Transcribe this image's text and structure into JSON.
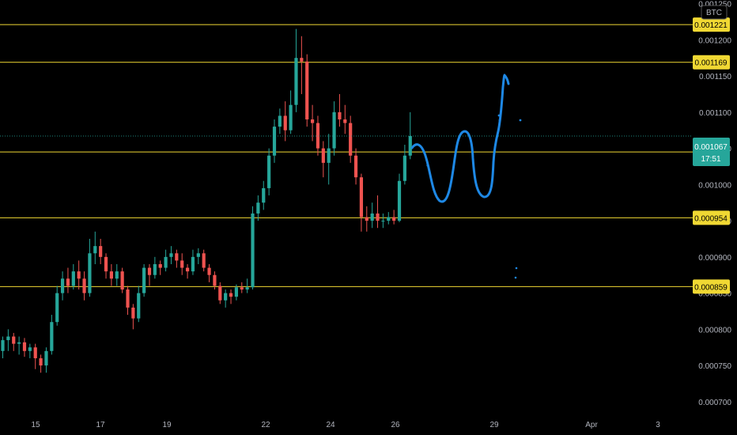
{
  "chart_data": {
    "type": "candlestick",
    "symbol_badge": "BTC",
    "y_axis": {
      "range": [
        0.00069,
        0.001255
      ],
      "ticks": [
        "0.001250",
        "0.001200",
        "0.001150",
        "0.001100",
        "0.001050",
        "0.001000",
        "0.000950",
        "0.000900",
        "0.000850",
        "0.000800",
        "0.000750",
        "0.000700"
      ]
    },
    "x_axis": {
      "labels": [
        "15",
        "17",
        "19",
        "22",
        "24",
        "26",
        "29",
        "Apr",
        "3"
      ]
    },
    "levels": [
      "0.001221",
      "0.001169",
      "0.001045",
      "0.000954",
      "0.000859"
    ],
    "current_price": {
      "value": "0.001067",
      "countdown": "17:51"
    },
    "colors": {
      "up": "#26a69a",
      "down": "#ef5350",
      "level": "#f0d833",
      "drawing": "#1e88e5",
      "current": "#26a69a"
    },
    "candles": [
      [
        0.00077,
        0.000785,
        0.00076,
        0.00079
      ],
      [
        0.000785,
        0.00079,
        0.00077,
        0.0008
      ],
      [
        0.00079,
        0.00078,
        0.00077,
        0.000795
      ],
      [
        0.00078,
        0.000782,
        0.000765,
        0.00079
      ],
      [
        0.000782,
        0.00077,
        0.000762,
        0.000788
      ],
      [
        0.00077,
        0.000775,
        0.00076,
        0.00078
      ],
      [
        0.000775,
        0.00076,
        0.000745,
        0.00078
      ],
      [
        0.00076,
        0.00075,
        0.00074,
        0.000765
      ],
      [
        0.00075,
        0.00077,
        0.00074,
        0.000775
      ],
      [
        0.00077,
        0.00081,
        0.000765,
        0.00082
      ],
      [
        0.00081,
        0.00085,
        0.000805,
        0.00086
      ],
      [
        0.00085,
        0.00087,
        0.00084,
        0.00088
      ],
      [
        0.00087,
        0.00086,
        0.00085,
        0.000885
      ],
      [
        0.00086,
        0.00088,
        0.000855,
        0.00089
      ],
      [
        0.00088,
        0.00087,
        0.000855,
        0.000895
      ],
      [
        0.00087,
        0.00085,
        0.00084,
        0.00088
      ],
      [
        0.00085,
        0.000905,
        0.000845,
        0.000925
      ],
      [
        0.000905,
        0.000915,
        0.00089,
        0.000935
      ],
      [
        0.000915,
        0.0009,
        0.00089,
        0.000925
      ],
      [
        0.0009,
        0.00088,
        0.00087,
        0.000905
      ],
      [
        0.00088,
        0.00087,
        0.00086,
        0.00089
      ],
      [
        0.00087,
        0.00088,
        0.00086,
        0.00089
      ],
      [
        0.00088,
        0.000855,
        0.00085,
        0.000885
      ],
      [
        0.000855,
        0.00083,
        0.00082,
        0.00086
      ],
      [
        0.00083,
        0.000815,
        0.0008,
        0.000835
      ],
      [
        0.000815,
        0.00085,
        0.00081,
        0.00086
      ],
      [
        0.00085,
        0.000885,
        0.000845,
        0.00089
      ],
      [
        0.000885,
        0.000875,
        0.00086,
        0.00089
      ],
      [
        0.000875,
        0.00089,
        0.00087,
        0.0009
      ],
      [
        0.00089,
        0.000885,
        0.000875,
        0.000895
      ],
      [
        0.000885,
        0.0009,
        0.00088,
        0.00091
      ],
      [
        0.0009,
        0.000905,
        0.00089,
        0.000915
      ],
      [
        0.000905,
        0.000895,
        0.000885,
        0.00091
      ],
      [
        0.000895,
        0.000885,
        0.000875,
        0.000905
      ],
      [
        0.000885,
        0.00088,
        0.00087,
        0.00089
      ],
      [
        0.00088,
        0.0009,
        0.000875,
        0.00091
      ],
      [
        0.0009,
        0.000905,
        0.00089,
        0.000912
      ],
      [
        0.000905,
        0.000885,
        0.00088,
        0.00091
      ],
      [
        0.000885,
        0.000875,
        0.000865,
        0.00089
      ],
      [
        0.000875,
        0.00086,
        0.000855,
        0.00088
      ],
      [
        0.00086,
        0.00084,
        0.000835,
        0.000865
      ],
      [
        0.00084,
        0.00085,
        0.00083,
        0.000855
      ],
      [
        0.00085,
        0.000845,
        0.000835,
        0.000855
      ],
      [
        0.000845,
        0.000858,
        0.00084,
        0.000862
      ],
      [
        0.000858,
        0.000855,
        0.00085,
        0.000865
      ],
      [
        0.000855,
        0.000858,
        0.00085,
        0.00087
      ],
      [
        0.000858,
        0.00096,
        0.000855,
        0.00097
      ],
      [
        0.00096,
        0.000975,
        0.00095,
        0.000985
      ],
      [
        0.000975,
        0.000995,
        0.000965,
        0.001005
      ],
      [
        0.000995,
        0.00104,
        0.000985,
        0.00105
      ],
      [
        0.00104,
        0.00108,
        0.00103,
        0.00109
      ],
      [
        0.00108,
        0.001095,
        0.00107,
        0.001105
      ],
      [
        0.001095,
        0.001075,
        0.00106,
        0.001115
      ],
      [
        0.001075,
        0.00111,
        0.00107,
        0.00113
      ],
      [
        0.00111,
        0.001175,
        0.0011,
        0.001215
      ],
      [
        0.001175,
        0.00117,
        0.001125,
        0.001205
      ],
      [
        0.00117,
        0.00109,
        0.00108,
        0.00118
      ],
      [
        0.00109,
        0.001085,
        0.00106,
        0.00111
      ],
      [
        0.001085,
        0.00105,
        0.00104,
        0.001095
      ],
      [
        0.00105,
        0.00103,
        0.00101,
        0.00106
      ],
      [
        0.00103,
        0.00105,
        0.001,
        0.00107
      ],
      [
        0.00105,
        0.0011,
        0.00104,
        0.001115
      ],
      [
        0.0011,
        0.00109,
        0.00108,
        0.001125
      ],
      [
        0.00109,
        0.001085,
        0.00107,
        0.00111
      ],
      [
        0.001085,
        0.00104,
        0.00103,
        0.001095
      ],
      [
        0.00104,
        0.00101,
        0.001,
        0.00105
      ],
      [
        0.00101,
        0.000955,
        0.000935,
        0.001015
      ],
      [
        0.000955,
        0.00095,
        0.000935,
        0.00097
      ],
      [
        0.00095,
        0.00096,
        0.00094,
        0.000975
      ],
      [
        0.00096,
        0.00095,
        0.00094,
        0.000985
      ],
      [
        0.00095,
        0.00095,
        0.00094,
        0.00096
      ],
      [
        0.00095,
        0.000955,
        0.000945,
        0.000962
      ],
      [
        0.000955,
        0.00095,
        0.000945,
        0.000965
      ],
      [
        0.00095,
        0.001005,
        0.000948,
        0.001015
      ],
      [
        0.001005,
        0.00104,
        0.001,
        0.001055
      ],
      [
        0.00104,
        0.001067,
        0.001035,
        0.0011
      ]
    ]
  }
}
